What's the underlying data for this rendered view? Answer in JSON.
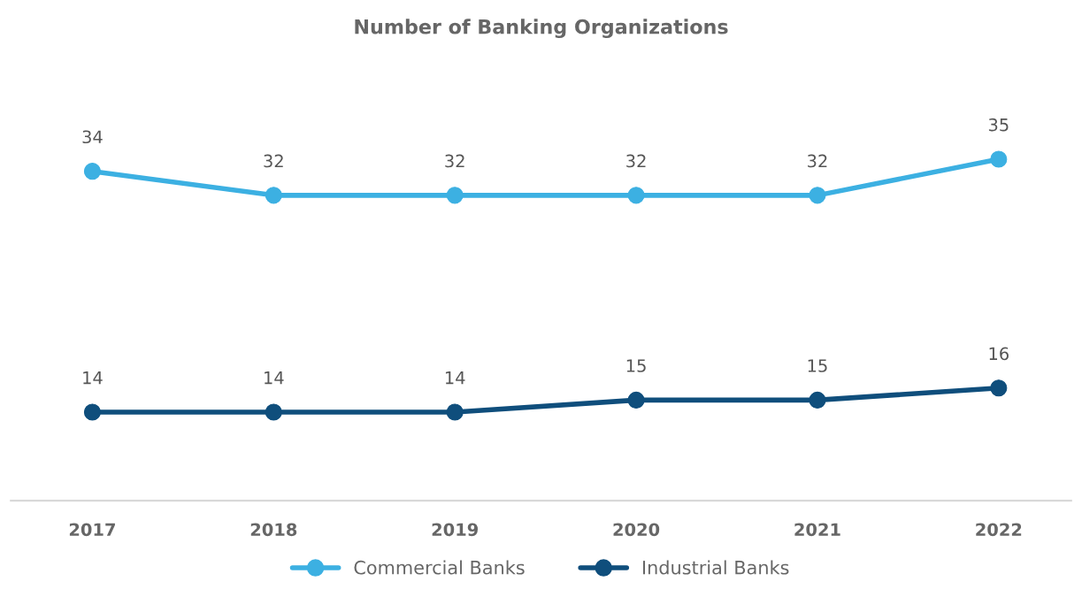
{
  "chart_data": {
    "type": "line",
    "title": "Number of Banking Organizations",
    "categories": [
      "2017",
      "2018",
      "2019",
      "2020",
      "2021",
      "2022"
    ],
    "series": [
      {
        "name": "Commercial Banks",
        "color": "#3cb0e2",
        "values": [
          34,
          32,
          32,
          32,
          32,
          35
        ]
      },
      {
        "name": "Industrial Banks",
        "color": "#0f4e7c",
        "values": [
          14,
          14,
          14,
          15,
          15,
          16
        ]
      }
    ],
    "data_labels": true,
    "marker": "circle",
    "line_style": "solid",
    "grid": false,
    "legend": "bottom",
    "tick_labels": "x"
  }
}
